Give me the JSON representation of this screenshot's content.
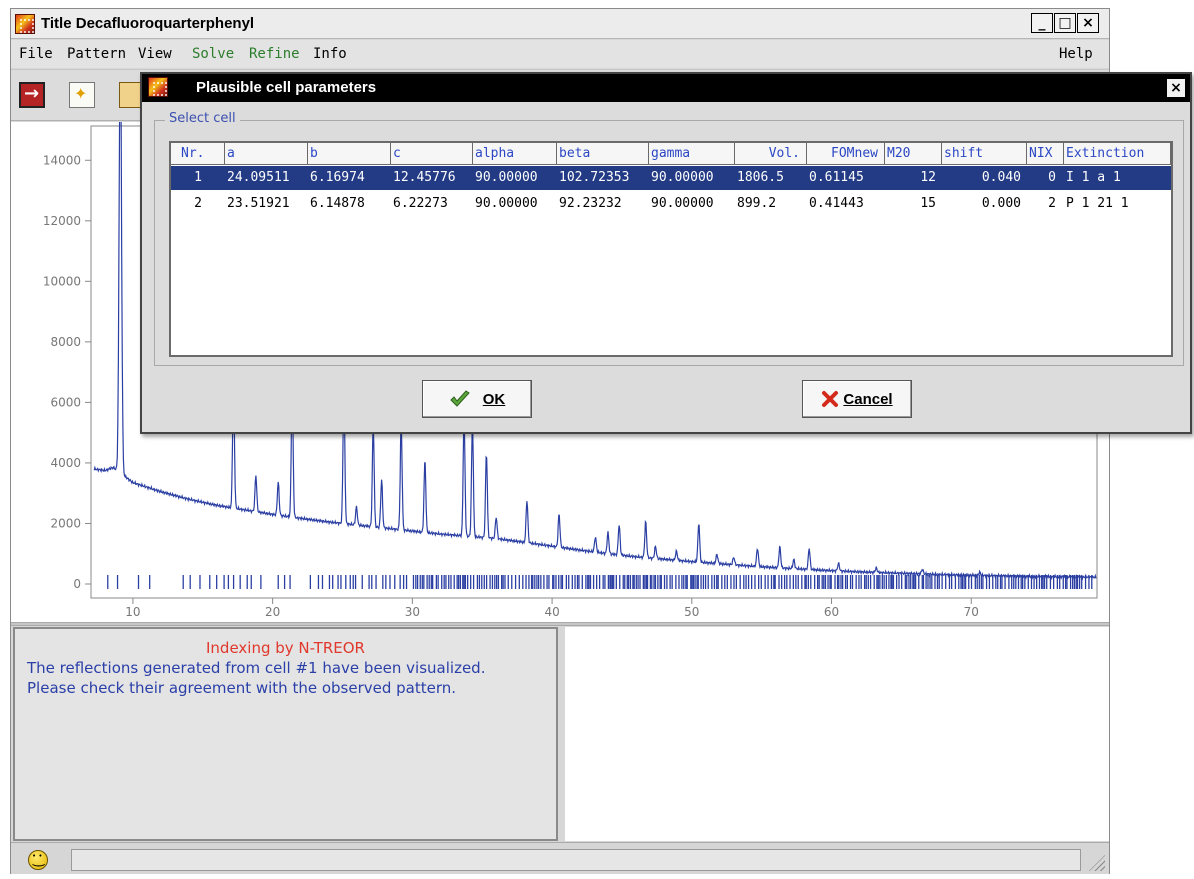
{
  "window": {
    "title": "Title Decafluoroquarterphenyl",
    "min_label": "_",
    "max_label": "□",
    "close_label": "×"
  },
  "menu": {
    "file": "File",
    "pattern": "Pattern",
    "view": "View",
    "solve": "Solve",
    "refine": "Refine",
    "info": "Info",
    "help": "Help"
  },
  "toolbar": {
    "icons": [
      "exit-icon",
      "new-icon",
      "open-folder-icon"
    ]
  },
  "dialog": {
    "title": "Plausible cell parameters",
    "close_label": "×",
    "group_label": "Select cell",
    "ok_label": "OK",
    "cancel_label": "Cancel"
  },
  "table": {
    "columns": [
      "Nr.",
      "a",
      "b",
      "c",
      "alpha",
      "beta",
      "gamma",
      "Vol.",
      "FOMnew",
      "M20",
      "shift",
      "NIX",
      "Extinction"
    ],
    "rows": [
      {
        "nr": "1",
        "a": "24.09511",
        "b": "6.16974",
        "c": "12.45776",
        "alpha": "90.00000",
        "beta": "102.72353",
        "gamma": "90.00000",
        "vol": "1806.5",
        "fom": "0.61145",
        "m20": "12",
        "shift": "0.040",
        "nix": "0",
        "ext": "I 1 a 1"
      },
      {
        "nr": "2",
        "a": "23.51921",
        "b": "6.14878",
        "c": "6.22273",
        "alpha": "90.00000",
        "beta": "92.23232",
        "gamma": "90.00000",
        "vol": "899.2",
        "fom": "0.41443",
        "m20": "15",
        "shift": "0.000",
        "nix": "2",
        "ext": "P 1 21 1"
      }
    ],
    "selected_row": 0
  },
  "chart_data": {
    "type": "line",
    "title": "",
    "xlabel": "",
    "ylabel": "",
    "xlim": [
      7,
      79
    ],
    "ylim": [
      0,
      15000
    ],
    "x_ticks": [
      10,
      20,
      30,
      40,
      50,
      60,
      70
    ],
    "y_ticks": [
      0,
      2000,
      4000,
      6000,
      8000,
      10000,
      12000,
      14000
    ],
    "color": "#2b3fa3",
    "background_points": [
      [
        7.2,
        3800
      ],
      [
        8.0,
        3750
      ],
      [
        8.6,
        3850
      ],
      [
        10,
        3350
      ],
      [
        12,
        3050
      ],
      [
        14,
        2800
      ],
      [
        16,
        2600
      ],
      [
        18,
        2450
      ],
      [
        20,
        2300
      ],
      [
        22,
        2170
      ],
      [
        24,
        2050
      ],
      [
        26,
        1950
      ],
      [
        28,
        1850
      ],
      [
        30,
        1750
      ],
      [
        32,
        1650
      ],
      [
        34,
        1580
      ],
      [
        36,
        1500
      ],
      [
        38,
        1380
      ],
      [
        40,
        1250
      ],
      [
        42,
        1120
      ],
      [
        44,
        1000
      ],
      [
        46,
        900
      ],
      [
        48,
        820
      ],
      [
        50,
        740
      ],
      [
        52,
        670
      ],
      [
        54,
        600
      ],
      [
        56,
        540
      ],
      [
        58,
        490
      ],
      [
        60,
        440
      ],
      [
        62,
        400
      ],
      [
        64,
        370
      ],
      [
        66,
        340
      ],
      [
        68,
        310
      ],
      [
        70,
        290
      ],
      [
        72,
        270
      ],
      [
        74,
        250
      ],
      [
        76,
        240
      ],
      [
        78,
        230
      ],
      [
        79,
        225
      ]
    ],
    "peaks": [
      {
        "x": 9.1,
        "y": 14500
      },
      {
        "x": 17.2,
        "y": 4300
      },
      {
        "x": 18.8,
        "y": 1200
      },
      {
        "x": 20.4,
        "y": 1100
      },
      {
        "x": 21.4,
        "y": 4400
      },
      {
        "x": 25.1,
        "y": 4600
      },
      {
        "x": 26.0,
        "y": 600
      },
      {
        "x": 27.2,
        "y": 3400
      },
      {
        "x": 27.8,
        "y": 1600
      },
      {
        "x": 29.2,
        "y": 3600
      },
      {
        "x": 30.9,
        "y": 2400
      },
      {
        "x": 33.7,
        "y": 4000
      },
      {
        "x": 34.3,
        "y": 3800
      },
      {
        "x": 35.3,
        "y": 2800
      },
      {
        "x": 36.0,
        "y": 700
      },
      {
        "x": 38.2,
        "y": 1400
      },
      {
        "x": 40.5,
        "y": 1100
      },
      {
        "x": 43.1,
        "y": 500
      },
      {
        "x": 44.0,
        "y": 700
      },
      {
        "x": 44.8,
        "y": 1000
      },
      {
        "x": 46.7,
        "y": 1200
      },
      {
        "x": 47.4,
        "y": 400
      },
      {
        "x": 48.9,
        "y": 300
      },
      {
        "x": 50.5,
        "y": 1300
      },
      {
        "x": 51.8,
        "y": 300
      },
      {
        "x": 53.0,
        "y": 250
      },
      {
        "x": 54.7,
        "y": 600
      },
      {
        "x": 56.3,
        "y": 700
      },
      {
        "x": 57.3,
        "y": 300
      },
      {
        "x": 58.4,
        "y": 700
      },
      {
        "x": 60.5,
        "y": 250
      },
      {
        "x": 63.2,
        "y": 150
      },
      {
        "x": 66.5,
        "y": 150
      },
      {
        "x": 70.6,
        "y": 100
      }
    ],
    "reflection_ticks_dense_from": 15.5
  },
  "messages": {
    "title": "Indexing by N-TREOR",
    "line1": "The reflections generated from cell #1 have been visualized.",
    "line2": "Please check their agreement with the observed pattern."
  },
  "status": {
    "text": ""
  }
}
